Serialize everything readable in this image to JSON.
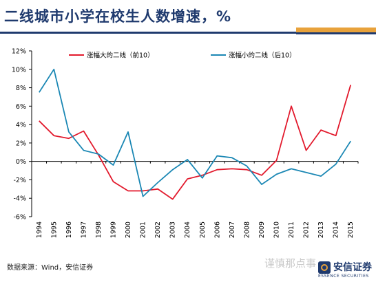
{
  "header": {
    "title": "二线城市小学在校生人数增速，%"
  },
  "footer": {
    "source": "数据来源：Wind，安信证券",
    "watermark": "谨慎那点事",
    "logo_name": "安信证券",
    "logo_sub": "ESSENCE SECURITIES"
  },
  "colors": {
    "brand_blue": "#1f3a6e",
    "brand_orange": "#e8a23b",
    "series_top10": "#e2192c",
    "series_bottom10": "#1a87b4"
  },
  "chart_data": {
    "type": "line",
    "x": [
      "1994",
      "1995",
      "1996",
      "1997",
      "1998",
      "1999",
      "2000",
      "2001",
      "2002",
      "2003",
      "2004",
      "2005",
      "2006",
      "2007",
      "2008",
      "2009",
      "2010",
      "2011",
      "2012",
      "2013",
      "2014",
      "2015"
    ],
    "series": [
      {
        "name": "涨幅大的二线（前10）",
        "color": "#e2192c",
        "values": [
          4.4,
          2.8,
          2.5,
          3.3,
          0.7,
          -2.2,
          -3.2,
          -3.2,
          -3.0,
          -4.1,
          -1.9,
          -1.5,
          -0.9,
          -0.8,
          -0.9,
          -1.5,
          0.1,
          6.0,
          1.2,
          3.4,
          2.8,
          8.3
        ]
      },
      {
        "name": "涨幅小的二线（后10）",
        "color": "#1a87b4",
        "values": [
          7.5,
          10.0,
          3.2,
          1.2,
          0.8,
          -0.4,
          3.2,
          -3.8,
          -2.3,
          -0.9,
          0.2,
          -1.8,
          0.6,
          0.4,
          -0.5,
          -2.5,
          -1.4,
          -0.8,
          -1.2,
          -1.6,
          -0.3,
          2.2
        ]
      }
    ],
    "yticks": [
      "12%",
      "10%",
      "8%",
      "6%",
      "4%",
      "2%",
      "0%",
      "-2%",
      "-4%",
      "-6%"
    ],
    "ylim": [
      -6,
      12
    ],
    "ystep": 2,
    "grid": false,
    "legend": "top"
  }
}
